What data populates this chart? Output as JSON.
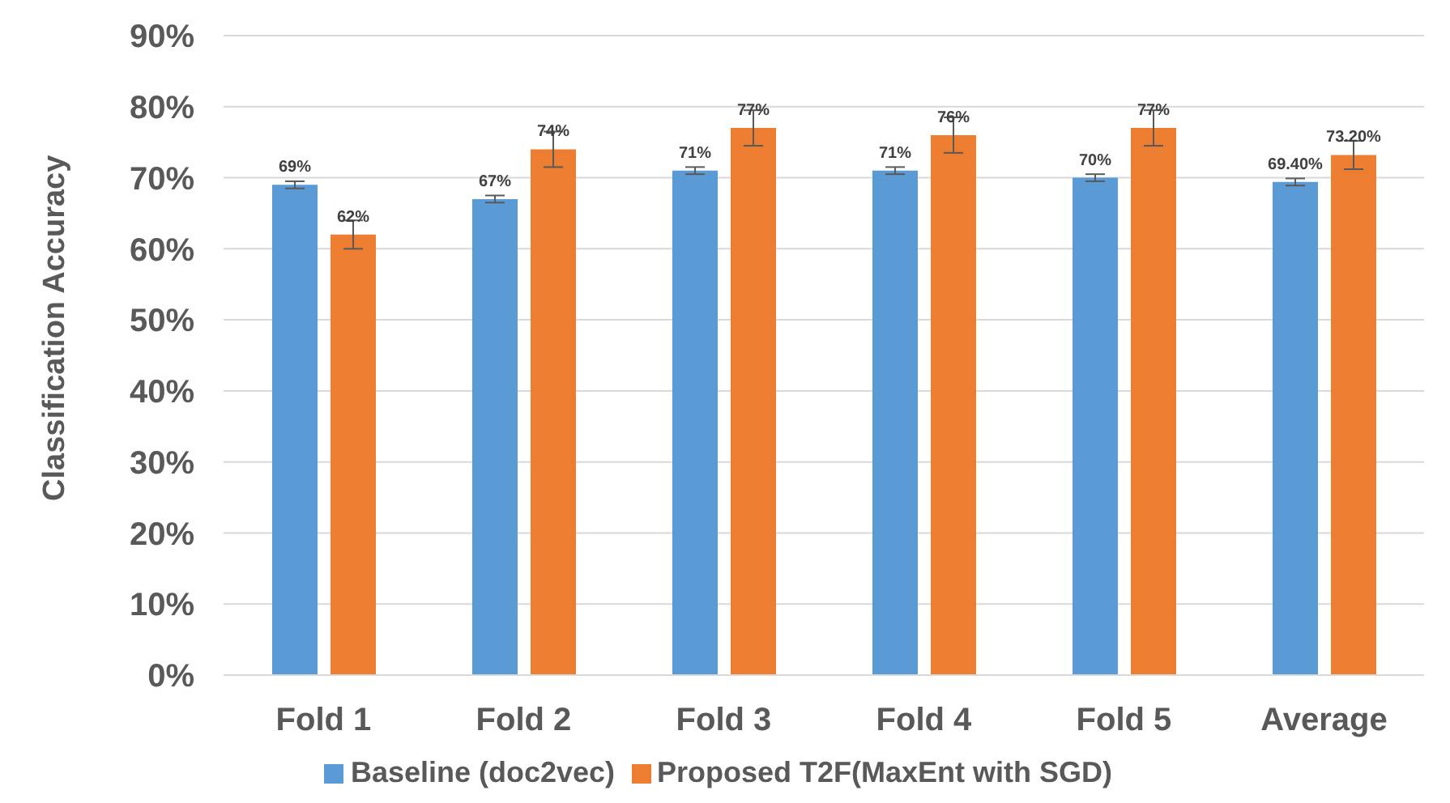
{
  "chart_data": {
    "type": "bar",
    "ylabel": "Classification Accuracy",
    "categories": [
      "Fold 1",
      "Fold 2",
      "Fold 3",
      "Fold 4",
      "Fold 5",
      "Average"
    ],
    "series": [
      {
        "name": "Baseline (doc2vec)",
        "color": "#5b9bd5",
        "values": [
          69,
          67,
          71,
          71,
          70,
          69.4
        ],
        "errors": [
          0.5,
          0.5,
          0.5,
          0.5,
          0.5,
          0.5
        ],
        "value_labels": [
          "69%",
          "67%",
          "71%",
          "71%",
          "70%",
          "69.40%"
        ]
      },
      {
        "name": "Proposed T2F(MaxEnt with SGD)",
        "color": "#ed7d31",
        "values": [
          62,
          74,
          77,
          76,
          77,
          73.2
        ],
        "errors": [
          2,
          2.5,
          2.5,
          2.5,
          2.5,
          2
        ],
        "value_labels": [
          "62%",
          "74%",
          "77%",
          "76%",
          "77%",
          "73.20%"
        ]
      }
    ],
    "ylim": [
      0,
      90
    ],
    "yticks": [
      {
        "value": 0,
        "label": "0%"
      },
      {
        "value": 10,
        "label": "10%"
      },
      {
        "value": 20,
        "label": "20%"
      },
      {
        "value": 30,
        "label": "30%"
      },
      {
        "value": 40,
        "label": "40%"
      },
      {
        "value": 50,
        "label": "50%"
      },
      {
        "value": 60,
        "label": "60%"
      },
      {
        "value": 70,
        "label": "70%"
      },
      {
        "value": 80,
        "label": "80%"
      },
      {
        "value": 90,
        "label": "90%"
      }
    ],
    "grid": "y",
    "legend": "bottom"
  }
}
